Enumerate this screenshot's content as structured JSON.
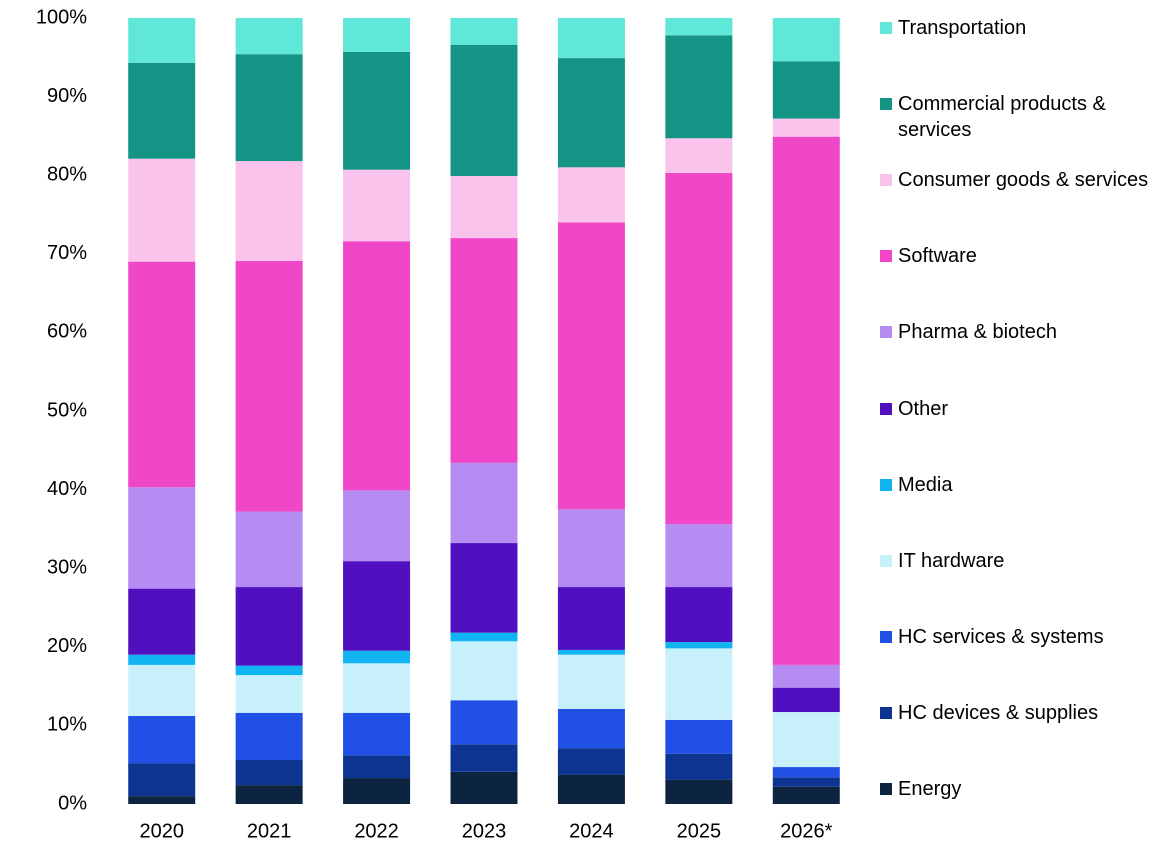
{
  "chart_data": {
    "type": "stacked_bar",
    "categories": [
      "2020",
      "2021",
      "2022",
      "2023",
      "2024",
      "2025",
      "2026*"
    ],
    "series": [
      {
        "name": "Energy",
        "color": "#0c2440",
        "values": [
          1.0,
          2.4,
          3.3,
          4.1,
          3.7,
          3.1,
          2.2
        ]
      },
      {
        "name": "HC devices & supplies",
        "color": "#0c3490",
        "values": [
          4.2,
          3.2,
          2.9,
          3.5,
          3.4,
          3.3,
          1.2
        ]
      },
      {
        "name": "HC services & systems",
        "color": "#2050e6",
        "values": [
          6.0,
          6.0,
          5.4,
          5.6,
          5.0,
          4.3,
          1.3
        ]
      },
      {
        "name": "IT hardware",
        "color": "#c8f0fa",
        "values": [
          6.5,
          4.8,
          6.3,
          7.5,
          6.9,
          9.1,
          7.0
        ]
      },
      {
        "name": "Media",
        "color": "#10b4f0",
        "values": [
          1.3,
          1.2,
          1.6,
          1.1,
          0.6,
          0.8,
          0
        ]
      },
      {
        "name": "Other",
        "color": "#5010c0",
        "values": [
          8.4,
          10.0,
          11.4,
          11.4,
          8.0,
          7.0,
          3.1
        ]
      },
      {
        "name": "Pharma & biotech",
        "color": "#b48cf2",
        "values": [
          12.9,
          9.6,
          9.0,
          10.2,
          9.9,
          8.0,
          2.9
        ]
      },
      {
        "name": "Software",
        "color": "#f046c8",
        "values": [
          28.7,
          31.9,
          31.7,
          28.6,
          36.5,
          44.7,
          67.2
        ]
      },
      {
        "name": "Consumer goods & services",
        "color": "#f9c3ec",
        "values": [
          13.1,
          12.7,
          9.1,
          7.9,
          7.0,
          4.4,
          2.3
        ]
      },
      {
        "name": "Commercial products & services",
        "color": "#149485",
        "values": [
          12.2,
          13.6,
          15.0,
          16.7,
          13.9,
          13.1,
          7.3
        ]
      },
      {
        "name": "Transportation",
        "color": "#5fe8d8",
        "values": [
          5.7,
          4.6,
          4.3,
          3.4,
          5.1,
          2.2,
          5.5
        ]
      }
    ],
    "ylim": [
      0,
      100
    ],
    "yticks": [
      {
        "value": 0,
        "label": "0%"
      },
      {
        "value": 10,
        "label": "10%"
      },
      {
        "value": 20,
        "label": "20%"
      },
      {
        "value": 30,
        "label": "30%"
      },
      {
        "value": 40,
        "label": "40%"
      },
      {
        "value": 50,
        "label": "50%"
      },
      {
        "value": 60,
        "label": "60%"
      },
      {
        "value": 70,
        "label": "70%"
      },
      {
        "value": 80,
        "label": "80%"
      },
      {
        "value": 90,
        "label": "90%"
      },
      {
        "value": 100,
        "label": "100%"
      }
    ],
    "legend": "right"
  }
}
